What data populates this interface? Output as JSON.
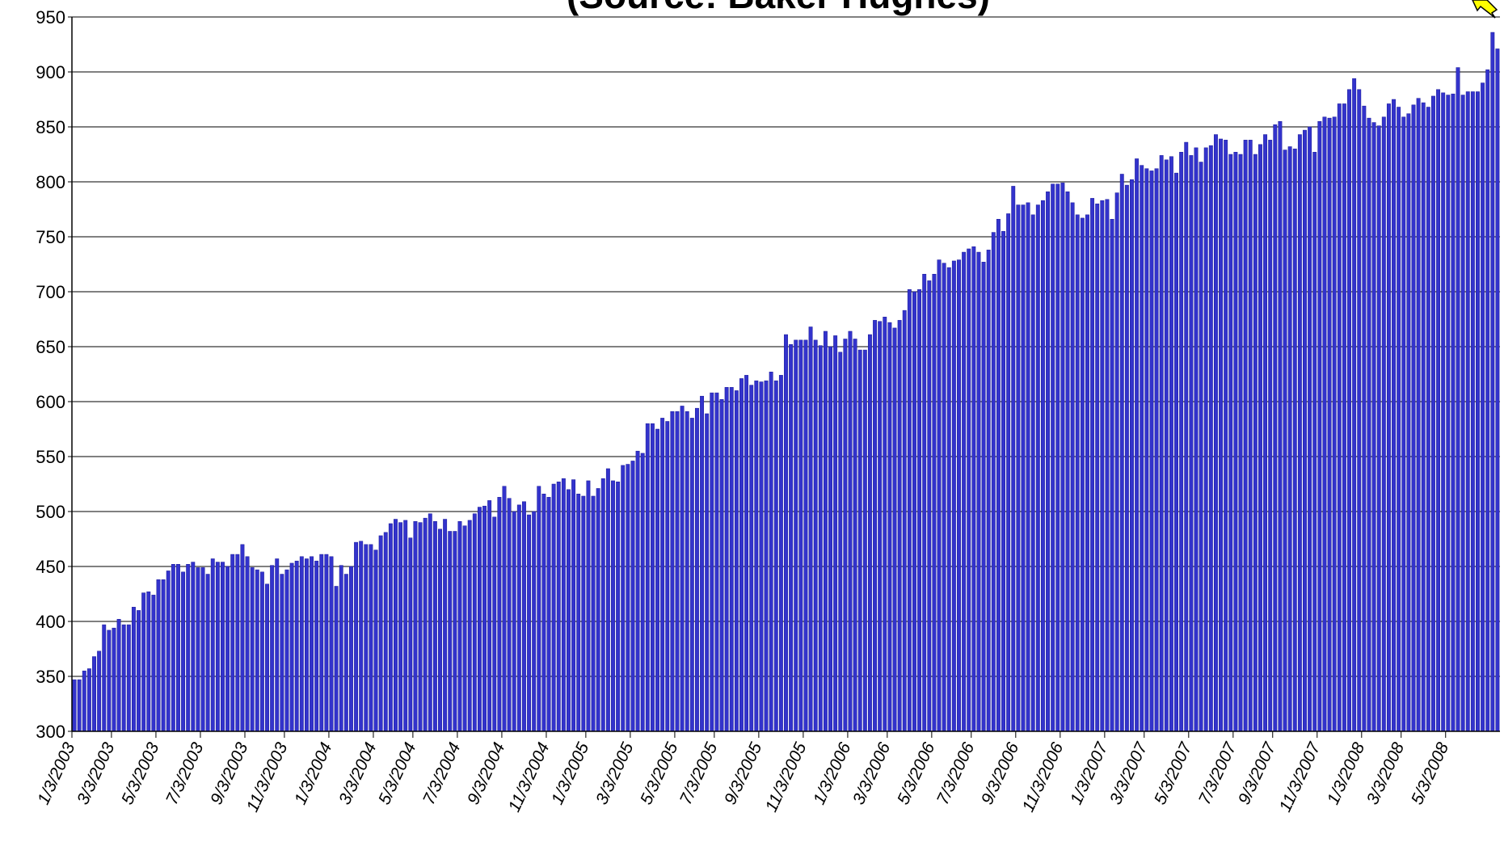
{
  "chart_data": {
    "type": "bar",
    "title": "(Source: Baker Hughes)",
    "color": "#3333cc",
    "grid": true,
    "ylim": [
      300,
      950
    ],
    "yticks": [
      300,
      350,
      400,
      450,
      500,
      550,
      600,
      650,
      700,
      750,
      800,
      850,
      900,
      950
    ],
    "categories": [
      "1/3/2003",
      null,
      null,
      null,
      null,
      null,
      null,
      null,
      "3/3/2003",
      null,
      null,
      null,
      null,
      null,
      null,
      null,
      null,
      "5/3/2003",
      null,
      null,
      null,
      null,
      null,
      null,
      null,
      null,
      "7/3/2003",
      null,
      null,
      null,
      null,
      null,
      null,
      null,
      null,
      "9/3/2003",
      null,
      null,
      null,
      null,
      null,
      null,
      null,
      "11/3/2003",
      null,
      null,
      null,
      null,
      null,
      null,
      null,
      null,
      "1/3/2004",
      null,
      null,
      null,
      null,
      null,
      null,
      null,
      null,
      "3/3/2004",
      null,
      null,
      null,
      null,
      null,
      null,
      null,
      "5/3/2004",
      null,
      null,
      null,
      null,
      null,
      null,
      null,
      null,
      "7/3/2004",
      null,
      null,
      null,
      null,
      null,
      null,
      null,
      null,
      "9/3/2004",
      null,
      null,
      null,
      null,
      null,
      null,
      null,
      null,
      "11/3/2004",
      null,
      null,
      null,
      null,
      null,
      null,
      null,
      "1/3/2005",
      null,
      null,
      null,
      null,
      null,
      null,
      null,
      null,
      "3/3/2005",
      null,
      null,
      null,
      null,
      null,
      null,
      null,
      null,
      "5/3/2005",
      null,
      null,
      null,
      null,
      null,
      null,
      null,
      "7/3/2005",
      null,
      null,
      null,
      null,
      null,
      null,
      null,
      null,
      "9/3/2005",
      null,
      null,
      null,
      null,
      null,
      null,
      null,
      null,
      "11/3/2005",
      null,
      null,
      null,
      null,
      null,
      null,
      null,
      null,
      "1/3/2006",
      null,
      null,
      null,
      null,
      null,
      null,
      null,
      "3/3/2006",
      null,
      null,
      null,
      null,
      null,
      null,
      null,
      null,
      "5/3/2006",
      null,
      null,
      null,
      null,
      null,
      null,
      null,
      "7/3/2006",
      null,
      null,
      null,
      null,
      null,
      null,
      null,
      null,
      "9/3/2006",
      null,
      null,
      null,
      null,
      null,
      null,
      null,
      null,
      "11/3/2006",
      null,
      null,
      null,
      null,
      null,
      null,
      null,
      null,
      "1/3/2007",
      null,
      null,
      null,
      null,
      null,
      null,
      null,
      "3/3/2007",
      null,
      null,
      null,
      null,
      null,
      null,
      null,
      null,
      "5/3/2007",
      null,
      null,
      null,
      null,
      null,
      null,
      null,
      null,
      "7/3/2007",
      null,
      null,
      null,
      null,
      null,
      null,
      null,
      "9/3/2007",
      null,
      null,
      null,
      null,
      null,
      null,
      null,
      null,
      "11/3/2007",
      null,
      null,
      null,
      null,
      null,
      null,
      null,
      null,
      "1/3/2008",
      null,
      null,
      null,
      null,
      null,
      null,
      null,
      "3/3/2008",
      null,
      null,
      null,
      null,
      null,
      null,
      null,
      null,
      "5/3/2008",
      null,
      null,
      null,
      null,
      null,
      null,
      null,
      null,
      null,
      null
    ],
    "values": [
      347,
      347,
      355,
      357,
      368,
      373,
      397,
      392,
      394,
      402,
      397,
      397,
      413,
      410,
      426,
      427,
      424,
      438,
      438,
      446,
      452,
      452,
      445,
      452,
      454,
      449,
      449,
      443,
      457,
      454,
      454,
      450,
      461,
      461,
      470,
      459,
      449,
      447,
      445,
      434,
      451,
      457,
      443,
      447,
      453,
      455,
      459,
      457,
      459,
      455,
      461,
      461,
      459,
      432,
      451,
      443,
      450,
      472,
      473,
      470,
      470,
      465,
      478,
      481,
      489,
      493,
      490,
      492,
      476,
      491,
      490,
      494,
      498,
      491,
      484,
      493,
      482,
      482,
      491,
      487,
      492,
      498,
      504,
      505,
      510,
      495,
      513,
      523,
      512,
      500,
      506,
      509,
      497,
      500,
      523,
      516,
      513,
      525,
      527,
      530,
      520,
      529,
      516,
      514,
      528,
      514,
      521,
      530,
      539,
      528,
      527,
      542,
      543,
      546,
      555,
      553,
      580,
      580,
      575,
      585,
      582,
      591,
      591,
      596,
      591,
      585,
      594,
      605,
      589,
      608,
      608,
      602,
      613,
      613,
      610,
      621,
      624,
      615,
      619,
      618,
      619,
      627,
      619,
      624,
      661,
      652,
      656,
      656,
      656,
      668,
      656,
      651,
      664,
      650,
      660,
      645,
      657,
      664,
      657,
      647,
      647,
      661,
      674,
      673,
      677,
      672,
      667,
      674,
      683,
      702,
      700,
      702,
      716,
      710,
      716,
      729,
      726,
      722,
      728,
      729,
      736,
      739,
      741,
      736,
      727,
      738,
      754,
      766,
      755,
      771,
      796,
      779,
      779,
      781,
      770,
      779,
      783,
      791,
      798,
      798,
      799,
      791,
      781,
      770,
      767,
      770,
      785,
      780,
      783,
      784,
      766,
      790,
      807,
      797,
      802,
      821,
      815,
      812,
      810,
      812,
      824,
      820,
      823,
      808,
      827,
      836,
      824,
      831,
      818,
      831,
      833,
      843,
      839,
      838,
      825,
      827,
      825,
      838,
      838,
      825,
      834,
      843,
      838,
      852,
      855,
      829,
      832,
      830,
      843,
      847,
      850,
      827,
      855,
      859,
      858,
      859,
      871,
      871,
      884,
      894,
      884,
      869,
      858,
      854,
      851,
      859,
      871,
      875,
      868,
      859,
      862,
      870,
      876,
      872,
      868,
      878,
      884,
      881,
      879,
      880,
      904,
      879,
      882,
      882,
      882,
      890,
      902,
      936,
      921
    ]
  }
}
